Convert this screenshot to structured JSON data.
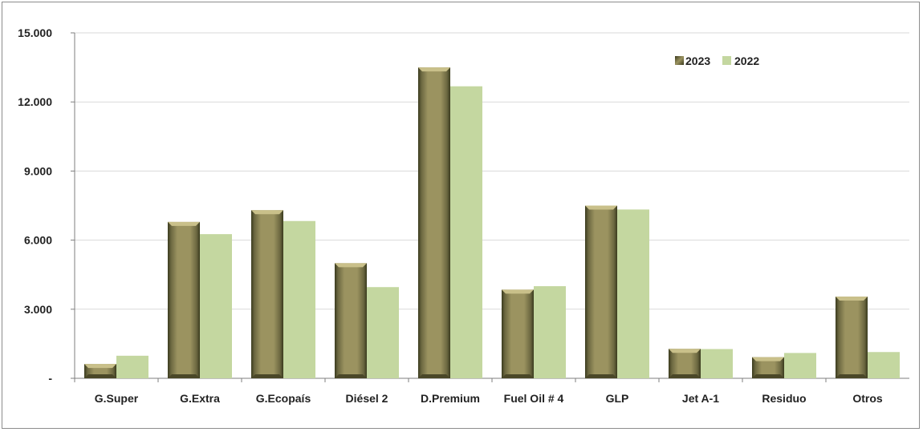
{
  "chart_data": {
    "type": "bar",
    "title": "",
    "xlabel": "",
    "ylabel": "",
    "categories": [
      "G.Super",
      "G.Extra",
      "G.Ecopaís",
      "Diésel 2",
      "D.Premium",
      "Fuel Oil # 4",
      "GLP",
      "Jet A-1",
      "Residuo",
      "Otros"
    ],
    "series": [
      {
        "name": "2023",
        "color": "#9b9360",
        "values": [
          620,
          6790,
          7300,
          5000,
          13500,
          3850,
          7500,
          1280,
          920,
          3550
        ]
      },
      {
        "name": "2022",
        "color": "#c4d7a0",
        "values": [
          980,
          6260,
          6830,
          3960,
          12680,
          4000,
          7330,
          1270,
          1100,
          1140
        ]
      }
    ],
    "ylim": [
      0,
      15000
    ],
    "yticks": [
      0,
      3000,
      6000,
      9000,
      12000,
      15000
    ],
    "ytick_labels": [
      "-",
      "3.000",
      "6.000",
      "9.000",
      "12.000",
      "15.000"
    ],
    "grid": true,
    "legend_position": "top-right"
  }
}
